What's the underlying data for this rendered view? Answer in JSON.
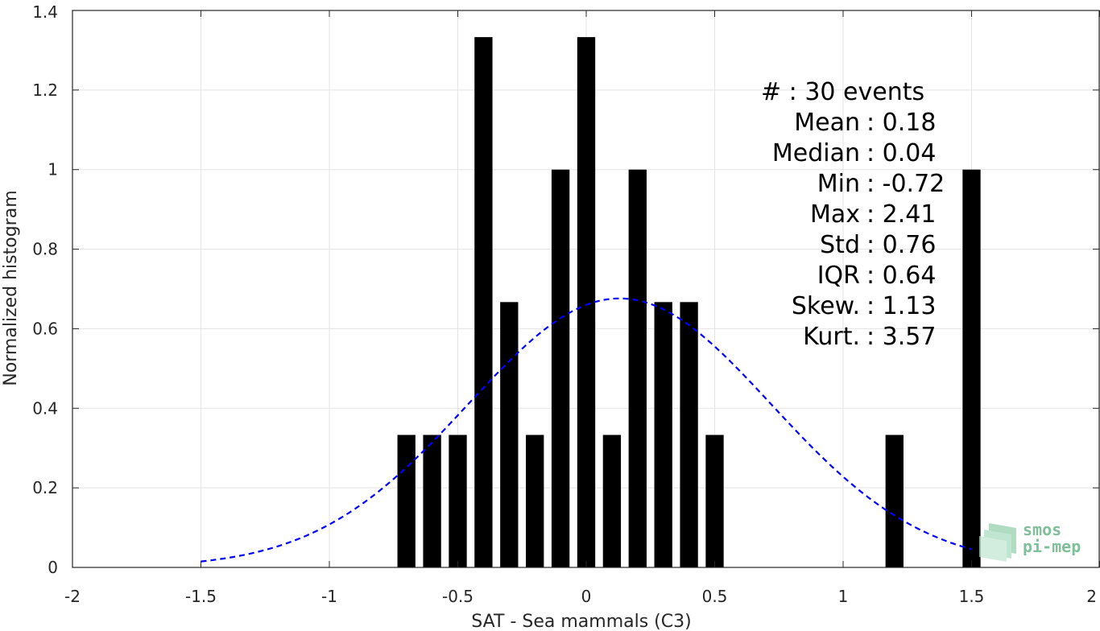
{
  "chart_data": {
    "type": "bar",
    "xlabel": "SAT - Sea mammals (C3)",
    "ylabel": "Normalized histogram",
    "xlim": [
      -2,
      2
    ],
    "ylim": [
      0,
      1.4
    ],
    "x_ticks": [
      -2,
      -1.5,
      -1,
      -0.5,
      0,
      0.5,
      1,
      1.5,
      2
    ],
    "x_tick_labels": [
      "-2",
      "-1.5",
      "-1",
      "-0.5",
      "0",
      "0.5",
      "1",
      "1.5",
      "2"
    ],
    "y_ticks": [
      0,
      0.2,
      0.4,
      0.6,
      0.8,
      1,
      1.2,
      1.4
    ],
    "y_tick_labels": [
      "0",
      "0.2",
      "0.4",
      "0.6",
      "0.8",
      "1",
      "1.2",
      "1.4"
    ],
    "grid": true,
    "bar_width": 0.07,
    "bars": [
      {
        "x": -0.7,
        "value": 0.333
      },
      {
        "x": -0.6,
        "value": 0.333
      },
      {
        "x": -0.5,
        "value": 0.333
      },
      {
        "x": -0.4,
        "value": 1.333
      },
      {
        "x": -0.3,
        "value": 0.667
      },
      {
        "x": -0.2,
        "value": 0.333
      },
      {
        "x": -0.1,
        "value": 1.0
      },
      {
        "x": 0.0,
        "value": 1.333
      },
      {
        "x": 0.1,
        "value": 0.333
      },
      {
        "x": 0.2,
        "value": 1.0
      },
      {
        "x": 0.3,
        "value": 0.667
      },
      {
        "x": 0.4,
        "value": 0.667
      },
      {
        "x": 0.5,
        "value": 0.333
      },
      {
        "x": 1.2,
        "value": 0.333
      },
      {
        "x": 1.5,
        "value": 1.0
      }
    ],
    "bar_color": "#000000",
    "fit_curve": {
      "type": "normal",
      "mean": 0.13,
      "std": 0.59,
      "x_range": [
        -1.5,
        1.5
      ],
      "color": "#0000ff",
      "style": "dashed"
    },
    "stats_lines": [
      "#  : 30 events",
      "Mean : 0.18",
      "Median : 0.04",
      "Min : -0.72",
      "Max : 2.41",
      "Std : 0.76",
      "IQR : 0.64",
      "Skew. : 1.13",
      "Kurt. : 3.57"
    ]
  },
  "logo": {
    "line1": "smos",
    "line2": "pi-mep",
    "color": "#7fbf9a"
  }
}
